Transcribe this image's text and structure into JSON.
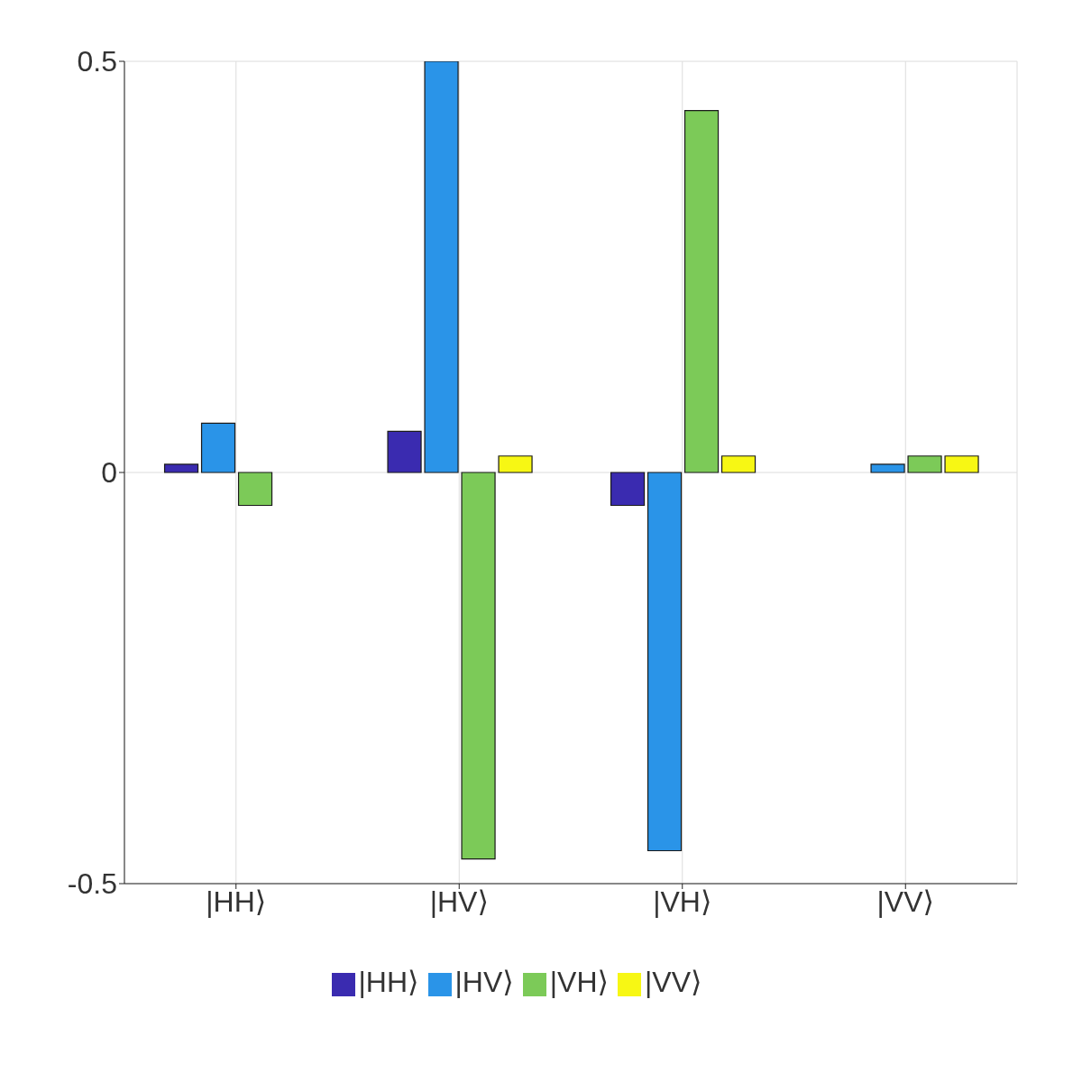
{
  "chart_data": {
    "type": "bar",
    "categories": [
      "|HH⟩",
      "|HV⟩",
      "|VH⟩",
      "|VV⟩"
    ],
    "series": [
      {
        "name": "|HH⟩",
        "color": "#3a2bb0",
        "values": [
          0.01,
          0.05,
          -0.04,
          0
        ]
      },
      {
        "name": "|HV⟩",
        "color": "#2a94e8",
        "values": [
          0.06,
          0.5,
          -0.46,
          0.01
        ]
      },
      {
        "name": "|VH⟩",
        "color": "#7cca58",
        "values": [
          -0.04,
          -0.47,
          0.44,
          0.02
        ]
      },
      {
        "name": "|VV⟩",
        "color": "#f7f714",
        "values": [
          0,
          0.02,
          0.02,
          0.02
        ]
      }
    ],
    "ylim": [
      -0.5,
      0.5
    ],
    "yticks": [
      -0.5,
      0,
      0.5
    ],
    "grid": true,
    "legend": "bottom"
  }
}
